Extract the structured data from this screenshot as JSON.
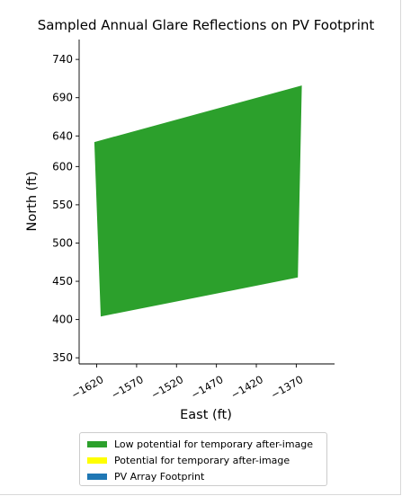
{
  "chart_data": {
    "type": "area",
    "title": "Sampled Annual Glare Reflections on PV Footprint",
    "xlabel": "East (ft)",
    "ylabel": "North (ft)",
    "xlim": [
      -1642,
      -1322
    ],
    "ylim": [
      342,
      766
    ],
    "xticks": [
      -1620,
      -1570,
      -1520,
      -1470,
      -1420,
      -1370
    ],
    "yticks": [
      350,
      400,
      450,
      500,
      550,
      600,
      640,
      690,
      740
    ],
    "grid": false,
    "legend_position": "bottom",
    "polygon": {
      "series": "Low potential for temporary after-image",
      "points": [
        [
          -1623,
          632
        ],
        [
          -1615,
          404
        ],
        [
          -1368,
          455
        ],
        [
          -1363,
          706
        ]
      ]
    },
    "colors": {
      "low": "#2ca02c",
      "potential": "#ffff00",
      "footprint": "#1f77b4"
    }
  },
  "legend": [
    {
      "label": "Low potential for temporary after-image",
      "color": "#2ca02c"
    },
    {
      "label": "Potential for temporary after-image",
      "color": "#ffff00"
    },
    {
      "label": "PV Array Footprint",
      "color": "#1f77b4"
    }
  ]
}
